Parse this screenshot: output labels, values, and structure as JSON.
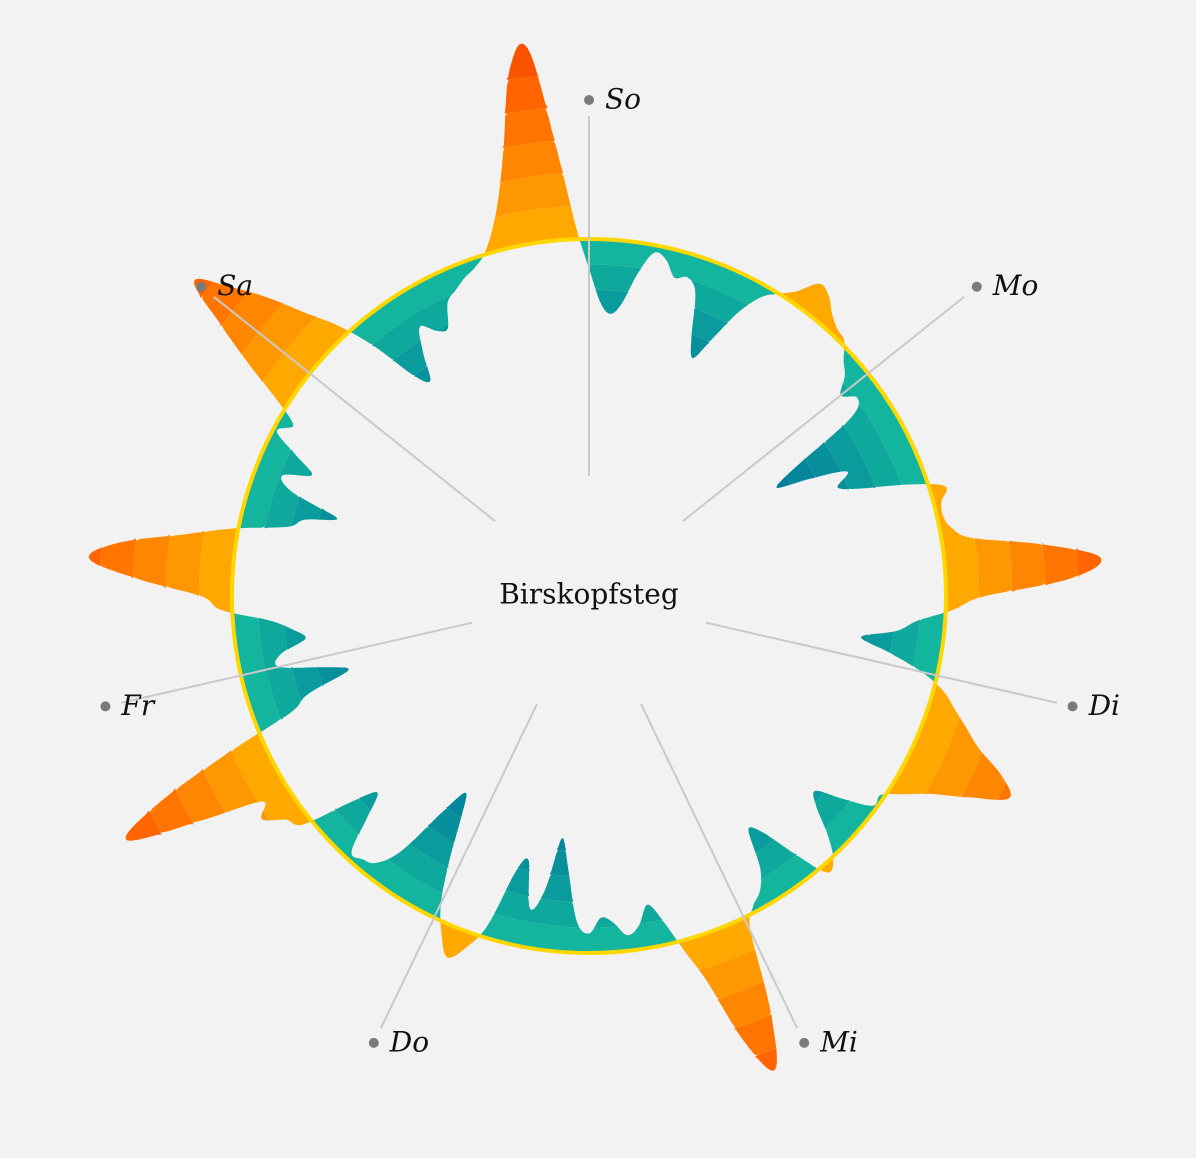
{
  "chart_data": {
    "type": "radial-area",
    "title": "Birskopfsteg",
    "days": [
      "So",
      "Mo",
      "Di",
      "Mi",
      "Do",
      "Fr",
      "Sa"
    ],
    "points_per_day": 24,
    "baseline": 0,
    "range": [
      -8,
      10
    ],
    "values": [
      -1.5,
      -3.2,
      -3.8,
      -3.2,
      -1.6,
      -0.4,
      -0.6,
      -1.4,
      -1.2,
      -1.8,
      -3.9,
      -5.0,
      -3.6,
      -1.8,
      -0.6,
      0.0,
      0.6,
      1.6,
      1.4,
      0.8,
      0.4,
      0.2,
      -0.5,
      -1.0,
      -1.8,
      -1.2,
      -2.0,
      -5.6,
      -7.2,
      -5.4,
      -3.6,
      -4.4,
      -3.2,
      -1.0,
      0.8,
      0.4,
      0.3,
      0.6,
      1.6,
      5.2,
      8.0,
      6.5,
      2.0,
      0.4,
      -1.4,
      -2.4,
      -4.2,
      -2.6,
      -0.8,
      0.5,
      1.3,
      2.2,
      3.2,
      4.8,
      5.6,
      3.8,
      2.0,
      0.8,
      -0.2,
      -0.2,
      -1.6,
      -3.0,
      -2.4,
      -1.0,
      0.1,
      0.4,
      -1.4,
      -3.2,
      -3.8,
      -1.8,
      -0.8,
      -0.3,
      0.8,
      5.0,
      7.8,
      6.0,
      2.5,
      0.5,
      -1.2,
      -2.2,
      -1.2,
      -0.8,
      -1.5,
      -1.8,
      -1.0,
      -1.6,
      -4.2,
      -5.8,
      -3.0,
      -2.0,
      -4.4,
      -3.6,
      -0.6,
      0.8,
      1.6,
      0.6,
      -0.8,
      -3.0,
      -5.2,
      -6.4,
      -4.8,
      -2.0,
      -0.8,
      -0.5,
      -0.4,
      -2.2,
      -3.5,
      -2.0,
      0.5,
      1.0,
      2.0,
      1.5,
      4.8,
      8.5,
      6.2,
      2.0,
      -1.8,
      -3.0,
      -5.4,
      -4.2,
      -2.0,
      -2.2,
      -3.6,
      -3.0,
      -1.8,
      0.6,
      1.6,
      4.8,
      7.4,
      6.0,
      2.8,
      0.3,
      -2.4,
      -3.2,
      -4.8,
      -2.2,
      -1.4,
      -2.8,
      -1.6,
      -0.2,
      -0.8,
      0.6,
      2.8,
      5.2,
      7.6,
      6.0,
      4.2,
      2.2,
      0.6,
      -1.4,
      -3.8,
      -4.6,
      -3.2,
      -2.0,
      -2.6,
      -2.8,
      -1.6,
      -1.2,
      -0.8,
      -0.5,
      0.0,
      1.0,
      2.6,
      5.2,
      9.0,
      10.0,
      5.0,
      0.8
    ],
    "colors": {
      "background": "#f2f2f2",
      "ring": "#ffd700",
      "positive": [
        "#ffa800",
        "#ff9700",
        "#ff8600",
        "#ff7500",
        "#ff6400",
        "#fa5300"
      ],
      "negative": [
        "#13b59e",
        "#0ea89d",
        "#0a9b9c",
        "#07909b",
        "#05869b",
        "#047c9a"
      ],
      "spoke": "#c9c9c9",
      "dot": "#7a7a7a"
    }
  }
}
